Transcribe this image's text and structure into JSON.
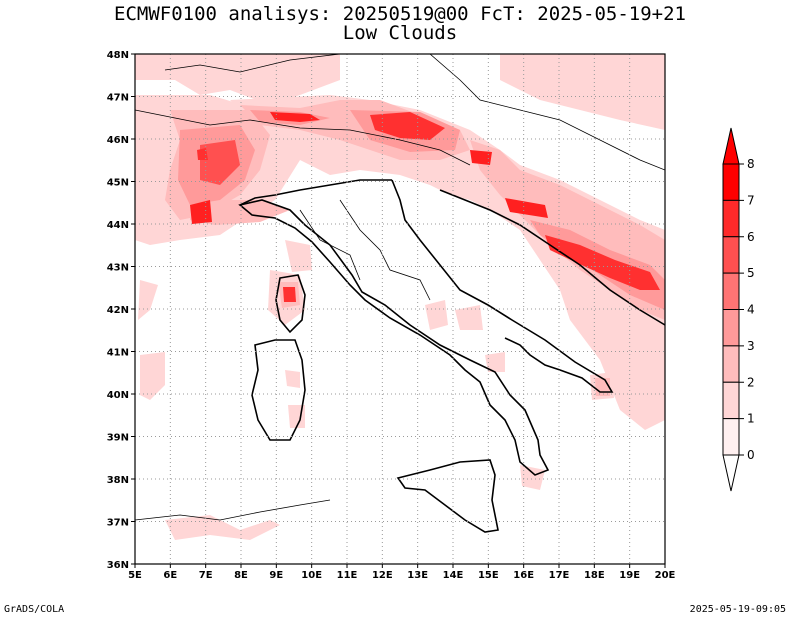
{
  "title_line1": "ECMWF0100 analisys: 20250519@00 FcT: 2025-05-19+21",
  "title_line2": "Low Clouds",
  "footer_left": "GrADS/COLA",
  "footer_right": "2025-05-19-09:05",
  "map": {
    "lon_labels": [
      "5E",
      "6E",
      "7E",
      "8E",
      "9E",
      "10E",
      "11E",
      "12E",
      "13E",
      "14E",
      "15E",
      "16E",
      "17E",
      "18E",
      "19E",
      "20E"
    ],
    "lat_labels": [
      "48N",
      "47N",
      "46N",
      "45N",
      "44N",
      "43N",
      "42N",
      "41N",
      "40N",
      "39N",
      "38N",
      "37N",
      "36N"
    ]
  },
  "legend": {
    "labels": [
      "8",
      "7",
      "6",
      "5",
      "4",
      "3",
      "2",
      "1",
      "0"
    ],
    "colors": [
      "#ff0000",
      "#ff2a2a",
      "#ff5050",
      "#ff7474",
      "#ff9a9a",
      "#ffbcbc",
      "#ffd6d6",
      "#fff0f0"
    ]
  }
}
